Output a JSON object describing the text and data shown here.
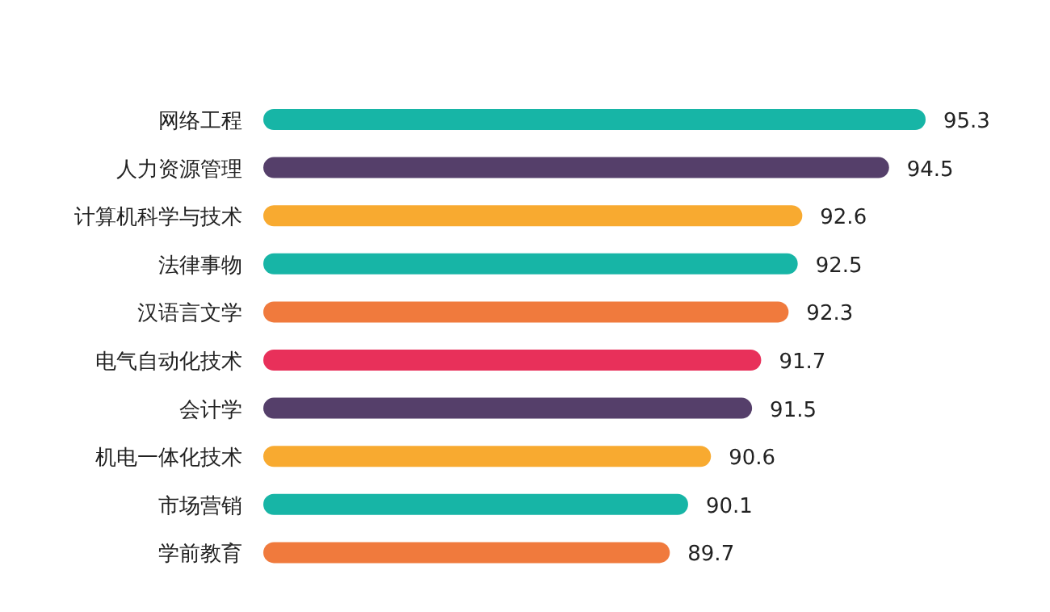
{
  "chart_data": {
    "type": "bar",
    "orientation": "horizontal",
    "data_labels": true,
    "xlim": [
      80.8,
      95.3
    ],
    "categories": [
      "网络工程",
      "人力资源管理",
      "计算机科学与技术",
      "法律事物",
      "汉语言文学",
      "电气自动化技术",
      "会计学",
      "机电一体化技术",
      "市场营销",
      "学前教育"
    ],
    "values": [
      95.3,
      94.5,
      92.6,
      92.5,
      92.3,
      91.7,
      91.5,
      90.6,
      90.1,
      89.7
    ],
    "colors": [
      "#17b5a6",
      "#553f6a",
      "#f8aa30",
      "#17b5a6",
      "#f07a3d",
      "#e8305a",
      "#553f6a",
      "#f8aa30",
      "#17b5a6",
      "#f07a3d"
    ]
  }
}
